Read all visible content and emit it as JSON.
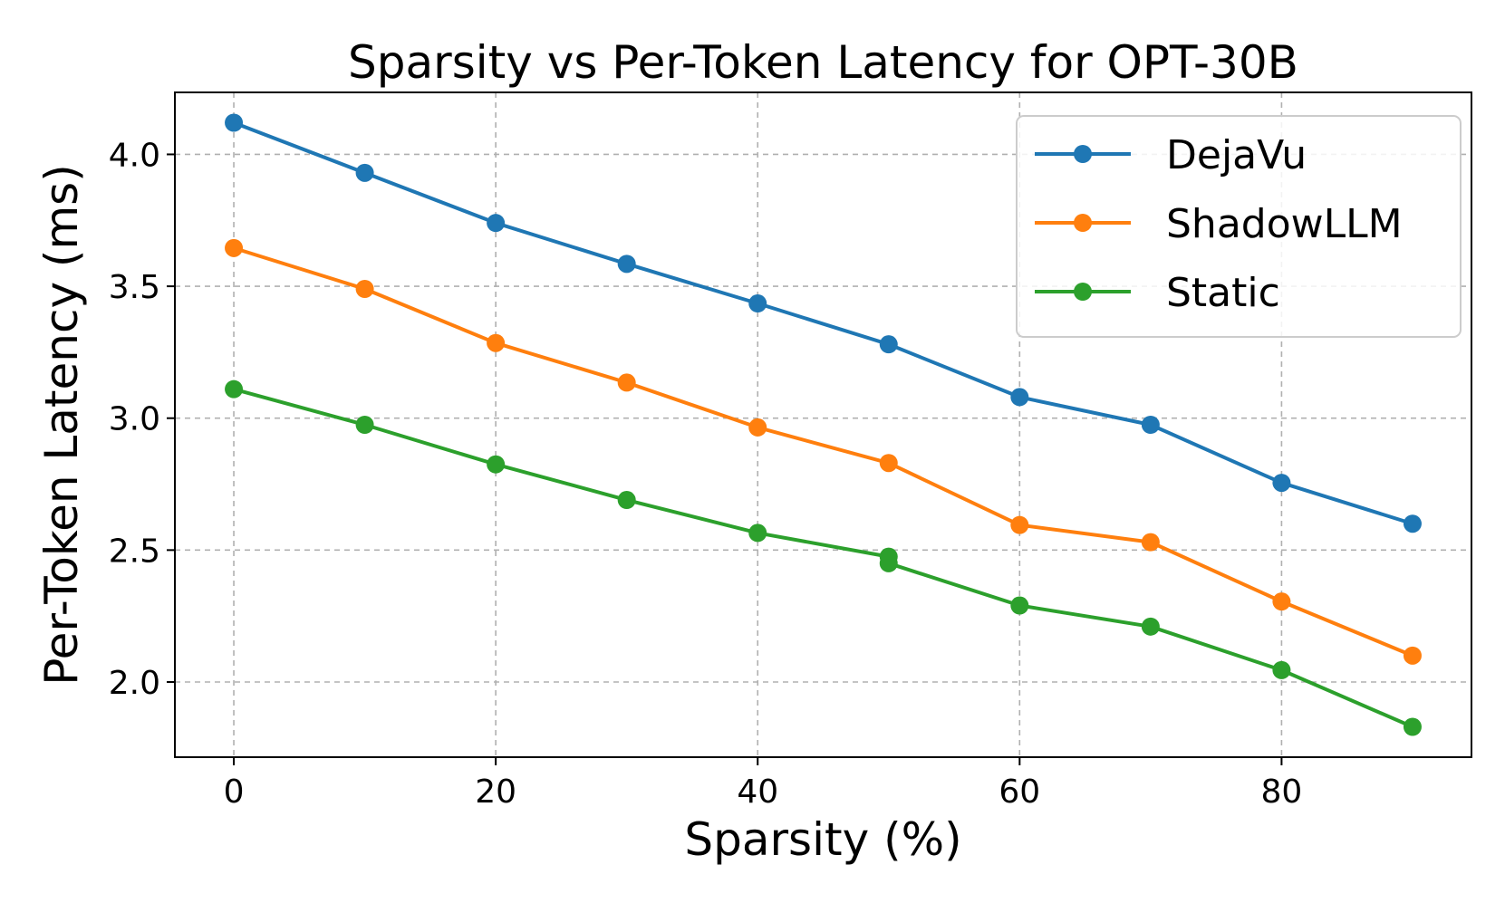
{
  "chart_data": {
    "type": "line",
    "title": "Sparsity vs Per-Token Latency for OPT-30B",
    "xlabel": "Sparsity (%)",
    "ylabel": "Per-Token Latency (ms)",
    "xlim": [
      -4.5,
      94.5
    ],
    "ylim": [
      1.715,
      4.235
    ],
    "xticks": [
      0,
      20,
      40,
      60,
      80
    ],
    "xtick_labels": [
      "0",
      "20",
      "40",
      "60",
      "80"
    ],
    "yticks": [
      2.0,
      2.5,
      3.0,
      3.5,
      4.0
    ],
    "ytick_labels": [
      "2.0",
      "2.5",
      "3.0",
      "3.5",
      "4.0"
    ],
    "grid": true,
    "legend_position": "top-right",
    "series": [
      {
        "name": "DejaVu",
        "color": "#1f77b4",
        "x": [
          0,
          10,
          20,
          30,
          40,
          50,
          60,
          70,
          80,
          90
        ],
        "y": [
          4.12,
          3.93,
          3.74,
          3.585,
          3.435,
          3.28,
          3.08,
          2.975,
          2.755,
          2.6
        ]
      },
      {
        "name": "ShadowLLM",
        "color": "#ff7f0e",
        "x": [
          0,
          10,
          20,
          30,
          40,
          50,
          60,
          70,
          80,
          90
        ],
        "y": [
          3.645,
          3.49,
          3.285,
          3.135,
          2.965,
          2.83,
          2.595,
          2.53,
          2.305,
          2.1
        ]
      },
      {
        "name": "Static",
        "color": "#2ca02c",
        "x": [
          0,
          10,
          20,
          30,
          40,
          50,
          50,
          60,
          70,
          80,
          90
        ],
        "y": [
          3.11,
          2.975,
          2.825,
          2.69,
          2.565,
          2.475,
          2.45,
          2.29,
          2.21,
          2.045,
          1.83
        ]
      }
    ]
  }
}
